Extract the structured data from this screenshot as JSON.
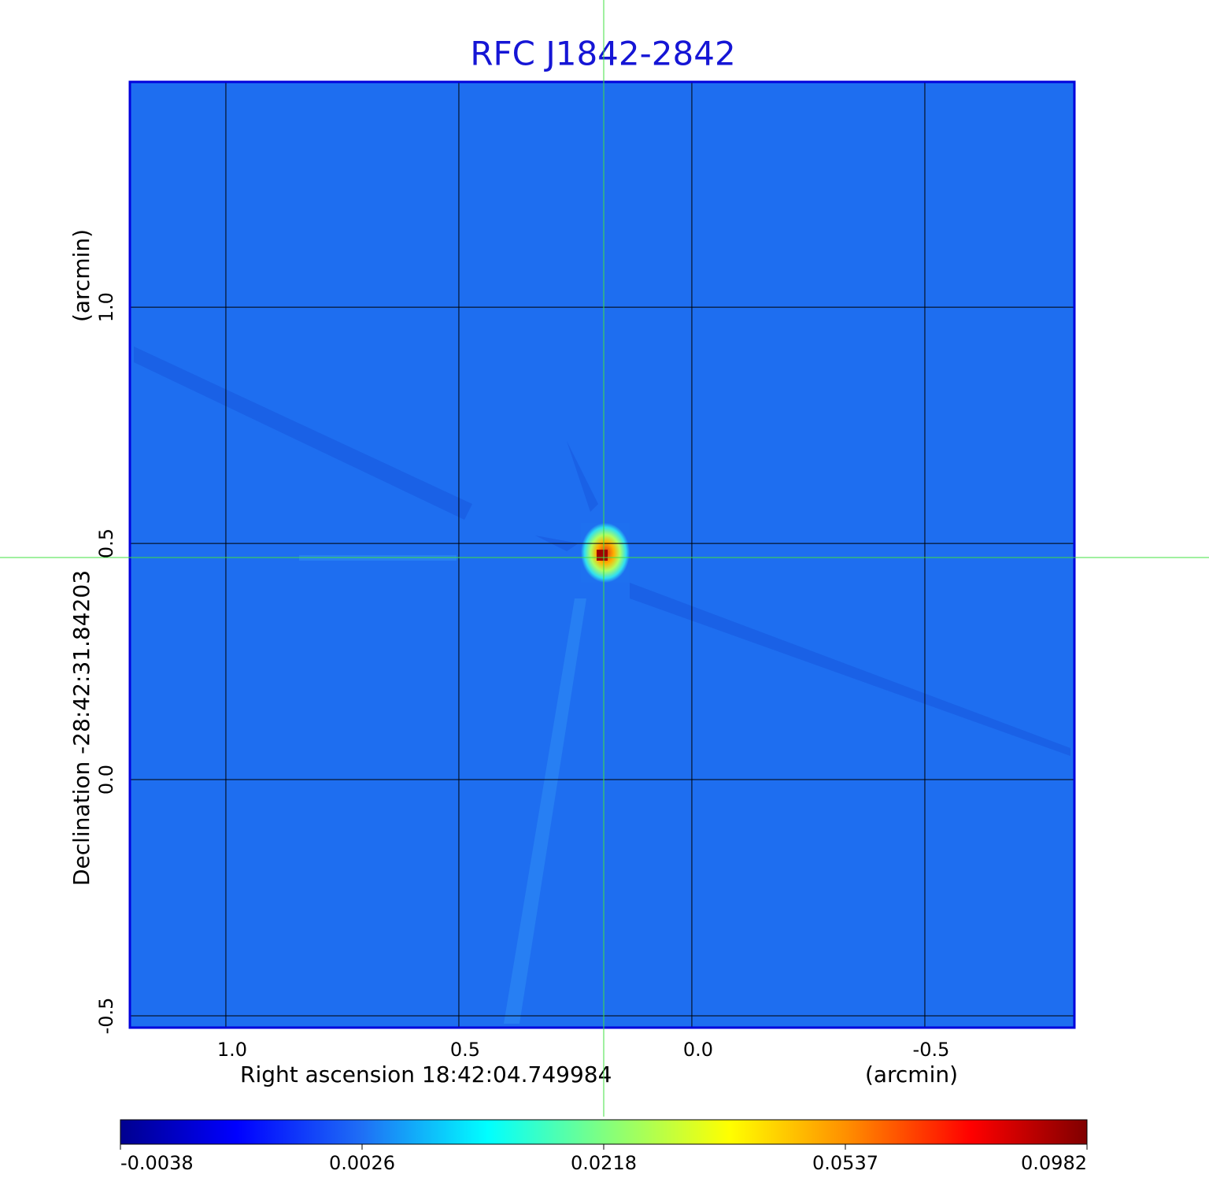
{
  "chart_data": {
    "type": "heatmap",
    "title": "RFC J1842-2842",
    "xlabel": "Right ascension  18:42:04.749984",
    "xunit": "(arcmin)",
    "ylabel": "Declination  -28:42:31.84203",
    "yunit": "(arcmin)",
    "xlim": [
      1.206,
      -0.821
    ],
    "ylim": [
      -0.525,
      1.477
    ],
    "xticks": [
      {
        "value": 1,
        "label": "1.0"
      },
      0.5,
      {
        "value": 0,
        "label": "0.0"
      },
      -0.5
    ],
    "yticks": [
      {
        "value": 1,
        "label": "1.0"
      },
      0.5,
      {
        "value": 0,
        "label": "0.0"
      },
      -0.5
    ],
    "grid": true,
    "colorbar_ticks": [
      -0.0038,
      0.0026,
      0.0218,
      0.0537,
      0.0982
    ]
  }
}
